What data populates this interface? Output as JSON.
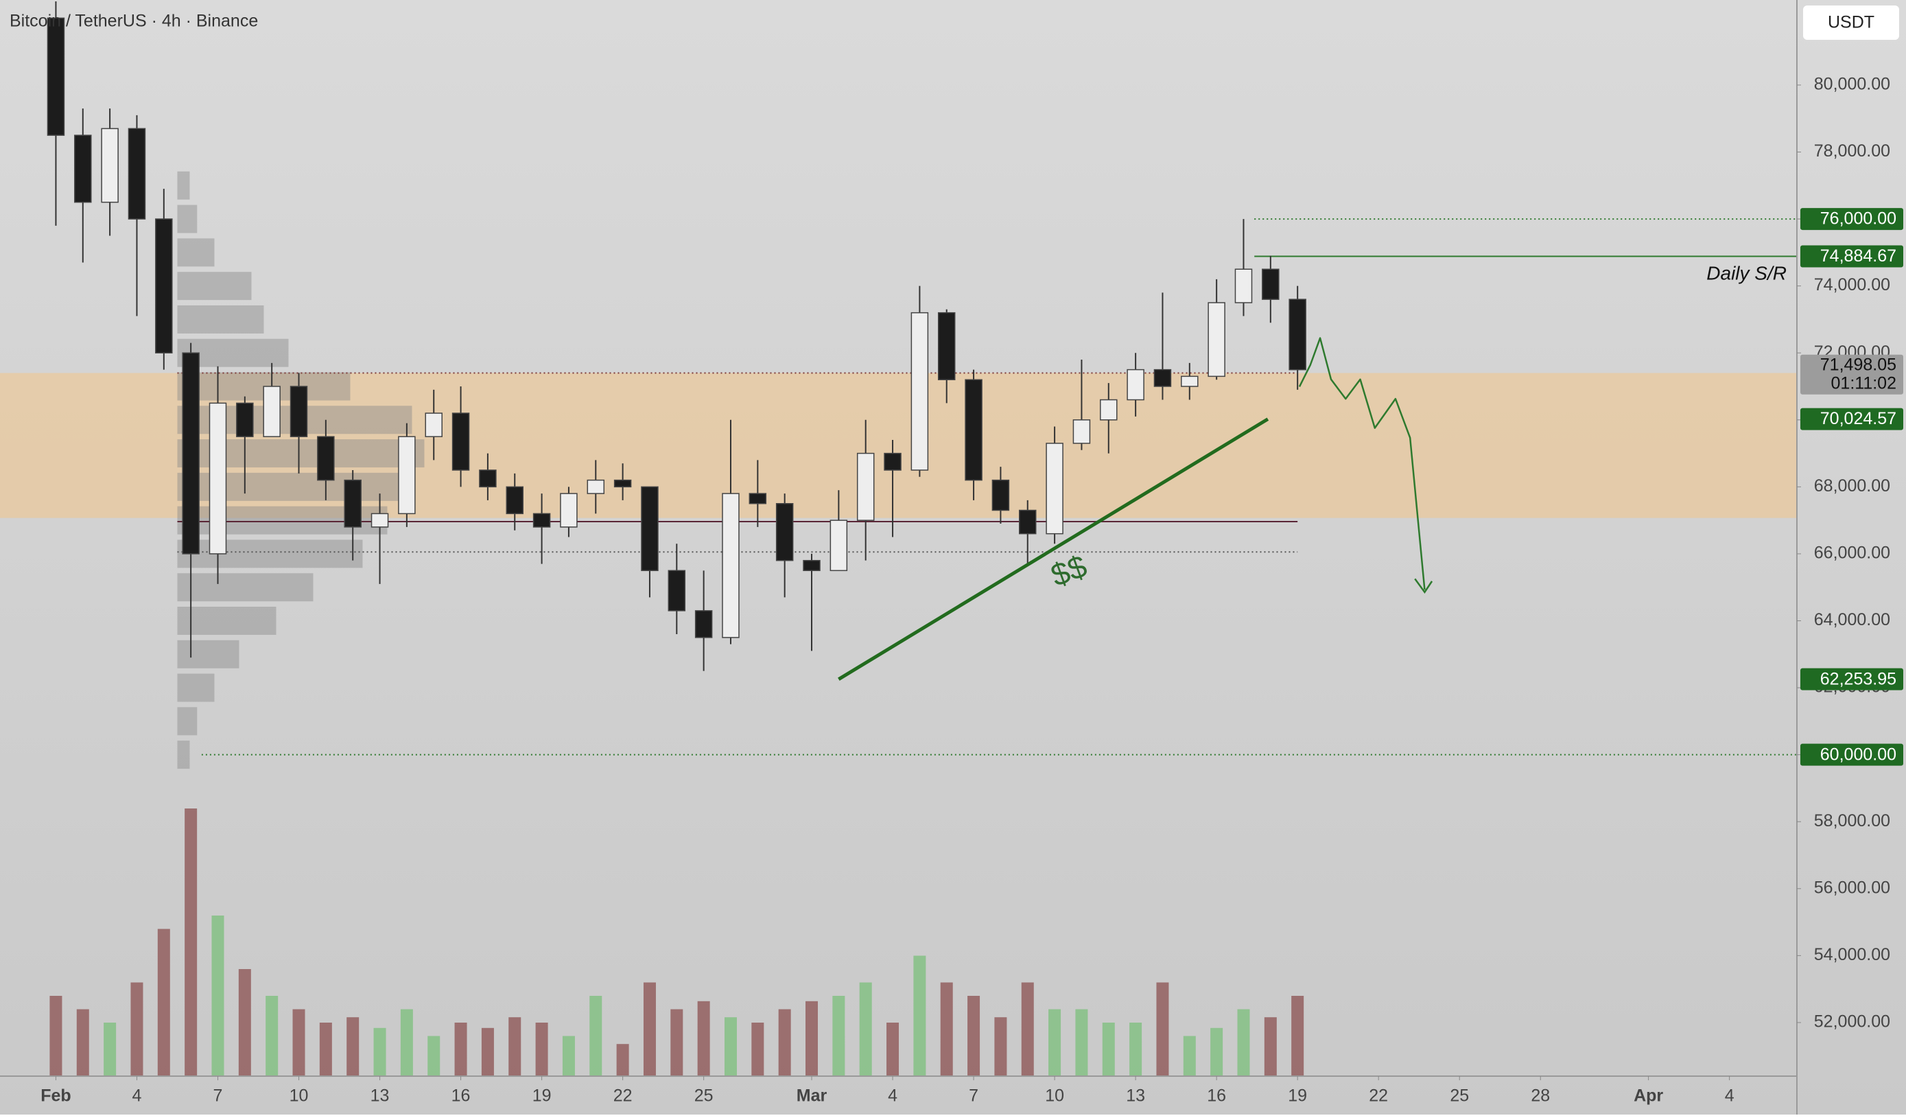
{
  "chart_data": {
    "type": "candlestick",
    "title": "Bitcoin / TetherUS · 4h · Binance",
    "currency_button": "USDT",
    "x": [
      0,
      1,
      2,
      3,
      4,
      5,
      6,
      7,
      8,
      9,
      10,
      11,
      12,
      13,
      14,
      15,
      16,
      17,
      18,
      19,
      20,
      21,
      22,
      23,
      24,
      25,
      26,
      27,
      28,
      29,
      30,
      31,
      32,
      33,
      34,
      35,
      36,
      37,
      38,
      39,
      40,
      41,
      42,
      43,
      44,
      45,
      46
    ],
    "open": [
      82000,
      78500,
      76500,
      78700,
      76000,
      72000,
      66000,
      70500,
      69500,
      71000,
      69500,
      68200,
      66800,
      67200,
      69500,
      70200,
      68500,
      68000,
      67200,
      66800,
      67800,
      68200,
      68000,
      65500,
      64300,
      63500,
      67800,
      67500,
      65800,
      65500,
      67000,
      69000,
      68500,
      73200,
      71200,
      68200,
      67300,
      66600,
      69300,
      70000,
      70600,
      71500,
      71000,
      71300,
      73500,
      74500,
      73600
    ],
    "high": [
      82500,
      79300,
      79300,
      79100,
      76900,
      72300,
      71600,
      70700,
      71700,
      71400,
      70000,
      68500,
      67800,
      69900,
      70900,
      71000,
      69000,
      68400,
      67800,
      68000,
      68800,
      68700,
      68000,
      66300,
      65500,
      70000,
      68800,
      67800,
      66000,
      67900,
      70000,
      69400,
      74000,
      73300,
      71500,
      68600,
      67600,
      69800,
      71800,
      71100,
      72000,
      73800,
      71700,
      74200,
      76000,
      74900,
      74000
    ],
    "low": [
      75800,
      74700,
      75500,
      73100,
      71500,
      62900,
      65100,
      67800,
      69500,
      68400,
      67600,
      65800,
      65100,
      66800,
      68800,
      68000,
      67600,
      66700,
      65700,
      66500,
      67200,
      67600,
      64700,
      63600,
      62500,
      63300,
      66800,
      64700,
      63100,
      65500,
      65800,
      66500,
      68300,
      70500,
      67600,
      66900,
      65700,
      66300,
      69100,
      69000,
      70100,
      70600,
      70600,
      71200,
      73100,
      72900,
      70900
    ],
    "close": [
      78500,
      76500,
      78700,
      76000,
      72000,
      66000,
      70500,
      69500,
      71000,
      69500,
      68200,
      66800,
      67200,
      69500,
      70200,
      68500,
      68000,
      67200,
      66800,
      67800,
      68200,
      68000,
      65500,
      64300,
      63500,
      67800,
      67500,
      65800,
      65500,
      67000,
      69000,
      68500,
      73200,
      71200,
      68200,
      67300,
      66600,
      69300,
      70000,
      70600,
      71500,
      71000,
      71300,
      73500,
      74500,
      73600,
      71498.05
    ],
    "volume": [
      30,
      25,
      20,
      35,
      55,
      100,
      60,
      40,
      30,
      25,
      20,
      22,
      18,
      25,
      15,
      20,
      18,
      22,
      20,
      15,
      30,
      12,
      35,
      25,
      28,
      22,
      20,
      25,
      28,
      30,
      35,
      20,
      45,
      35,
      30,
      22,
      35,
      25,
      25,
      20,
      20,
      35,
      15,
      18,
      25,
      22,
      30
    ],
    "up_color": "#eeeeee",
    "down_color": "#1c1c1c",
    "volume_up_color": "#7fbf7f",
    "volume_down_color": "#8e5858",
    "xlim": [
      -2.07,
      64.5
    ],
    "ylim": [
      50400,
      82540
    ],
    "xticks": [
      {
        "value": 0,
        "label": "Feb"
      },
      {
        "value": 3,
        "label": "4"
      },
      {
        "value": 6,
        "label": "7"
      },
      {
        "value": 9,
        "label": "10"
      },
      {
        "value": 12,
        "label": "13"
      },
      {
        "value": 15,
        "label": "16"
      },
      {
        "value": 18,
        "label": "19"
      },
      {
        "value": 21,
        "label": "22"
      },
      {
        "value": 24,
        "label": "25"
      },
      {
        "value": 28,
        "label": "Mar"
      },
      {
        "value": 31,
        "label": "4"
      },
      {
        "value": 34,
        "label": "7"
      },
      {
        "value": 37,
        "label": "10"
      },
      {
        "value": 40,
        "label": "13"
      },
      {
        "value": 43,
        "label": "16"
      },
      {
        "value": 46,
        "label": "19"
      },
      {
        "value": 49,
        "label": "22"
      },
      {
        "value": 52,
        "label": "25"
      },
      {
        "value": 55,
        "label": "28"
      },
      {
        "value": 59,
        "label": "Apr"
      },
      {
        "value": 62,
        "label": "4"
      }
    ],
    "yticks": [
      {
        "value": 52000,
        "label": "52,000.00"
      },
      {
        "value": 54000,
        "label": "54,000.00"
      },
      {
        "value": 56000,
        "label": "56,000.00"
      },
      {
        "value": 58000,
        "label": "58,000.00"
      },
      {
        "value": 60000,
        "label": "60,000.00"
      },
      {
        "value": 62000,
        "label": "62,000.00"
      },
      {
        "value": 64000,
        "label": "64,000.00"
      },
      {
        "value": 66000,
        "label": "66,000.00"
      },
      {
        "value": 68000,
        "label": "68,000.00"
      },
      {
        "value": 70000,
        "label": "70,000.00"
      },
      {
        "value": 72000,
        "label": "72,000.00"
      },
      {
        "value": 74000,
        "label": "74,000.00"
      },
      {
        "value": 76000,
        "label": "76,000.00"
      },
      {
        "value": 78000,
        "label": "78,000.00"
      },
      {
        "value": 80000,
        "label": "80,000.00"
      }
    ],
    "price_tags": [
      {
        "value": 76000,
        "label": "76,000.00",
        "color": "#1f6a22"
      },
      {
        "value": 74884.67,
        "label": "74,884.67",
        "color": "#1f6a22"
      },
      {
        "value": 70024.57,
        "label": "70,024.57",
        "color": "#1f6a22"
      },
      {
        "value": 62253.95,
        "label": "62,253.95",
        "color": "#1f6a22"
      },
      {
        "value": 60000,
        "label": "60,000.00",
        "color": "#1f6a22"
      }
    ],
    "last_price": {
      "value": 71498.05,
      "label": "71,498.05",
      "countdown": "01:11:02",
      "color": "#9c9c9c"
    },
    "zone": {
      "from": 67071,
      "to": 71400,
      "color": "#e8c9a0"
    },
    "levels": [
      {
        "value": 76000,
        "x0": 44.4,
        "style": "dotted",
        "color": "#2f7a2f"
      },
      {
        "value": 74884.67,
        "x0": 44.4,
        "style": "solid",
        "color": "#2f7a2f"
      },
      {
        "value": 71400,
        "x0": 4.5,
        "x1": 46,
        "style": "dotted",
        "color": "#7a3838"
      },
      {
        "value": 66962,
        "x0": 4.5,
        "x1": 46,
        "style": "solid",
        "color": "#5a2636"
      },
      {
        "value": 66054,
        "x0": 4.5,
        "x1": 46,
        "style": "dotted",
        "color": "#555555"
      },
      {
        "value": 60000,
        "x0": 5.4,
        "style": "dotted",
        "color": "#2f7a2f"
      }
    ],
    "trendline": {
      "x": [
        29,
        44.9
      ],
      "y": [
        62253.95,
        70024.57
      ],
      "color": "#226b1e"
    },
    "volume_profile": {
      "x0": 4.5,
      "prices": [
        60000,
        61000,
        62000,
        63000,
        64000,
        65000,
        66000,
        67000,
        68000,
        69000,
        70000,
        71000,
        72000,
        73000,
        74000,
        75000,
        76000,
        77000
      ],
      "values": [
        5,
        8,
        15,
        25,
        40,
        55,
        75,
        85,
        95,
        100,
        95,
        70,
        45,
        35,
        30,
        15,
        8,
        5
      ]
    },
    "annotations": [
      {
        "text": "Daily S/R"
      },
      {
        "text": "$$"
      }
    ]
  }
}
